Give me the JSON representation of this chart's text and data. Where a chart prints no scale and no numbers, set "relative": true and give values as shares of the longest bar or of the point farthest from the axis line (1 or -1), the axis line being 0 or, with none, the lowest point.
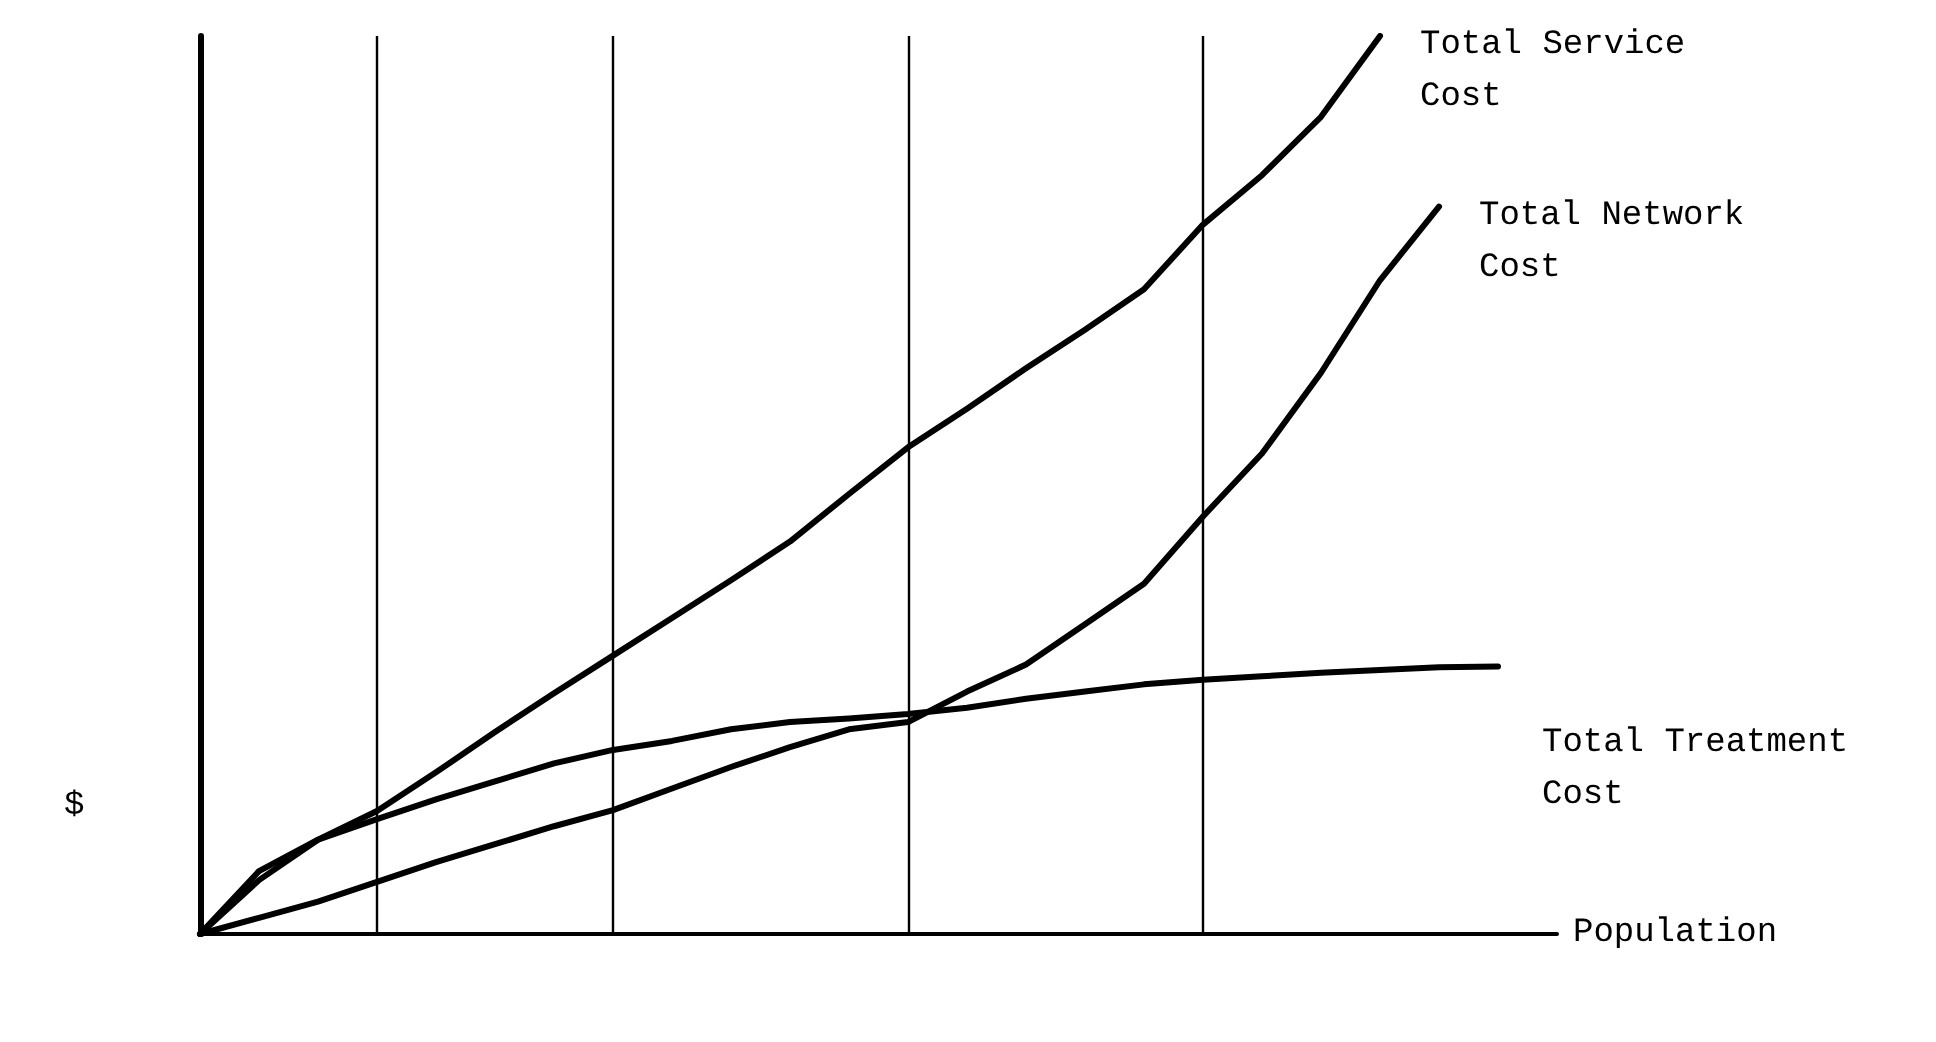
{
  "chart_data": {
    "type": "line",
    "relative": true,
    "xlabel": "Population",
    "ylabel": "$",
    "marker": "none",
    "categories": [
      null,
      null,
      null,
      null,
      null,
      null,
      null,
      null,
      null,
      null,
      null,
      null,
      null,
      null,
      null,
      null,
      null,
      null,
      null,
      null,
      null,
      null,
      null,
      null
    ],
    "grid": "x",
    "series": [
      {
        "name": "Total Service Cost",
        "color": "#000000",
        "values": [
          0,
          0.06,
          0.105,
          0.137,
          0.18,
          0.225,
          0.268,
          0.31,
          0.352,
          0.394,
          0.437,
          0.49,
          0.542,
          0.585,
          0.63,
          0.673,
          0.718,
          0.79,
          0.845,
          0.91,
          1,
          null,
          null,
          null
        ]
      },
      {
        "name": "Total Network Cost",
        "color": "#000000",
        "values": [
          0,
          0.018,
          0.036,
          0.058,
          0.08,
          0.1,
          0.12,
          0.138,
          0.162,
          0.186,
          0.208,
          0.228,
          0.236,
          0.27,
          0.3,
          0.345,
          0.39,
          0.465,
          0.535,
          0.625,
          0.728,
          0.81,
          null,
          null
        ]
      },
      {
        "name": "Total Treatment Cost",
        "color": "#000000",
        "values": [
          0,
          0.07,
          0.105,
          0.128,
          0.15,
          0.17,
          0.19,
          0.205,
          0.215,
          0.228,
          0.236,
          0.24,
          0.245,
          0.252,
          0.262,
          0.27,
          0.278,
          0.283,
          0.287,
          0.291,
          0.294,
          0.297,
          0.298,
          null
        ]
      }
    ]
  }
}
